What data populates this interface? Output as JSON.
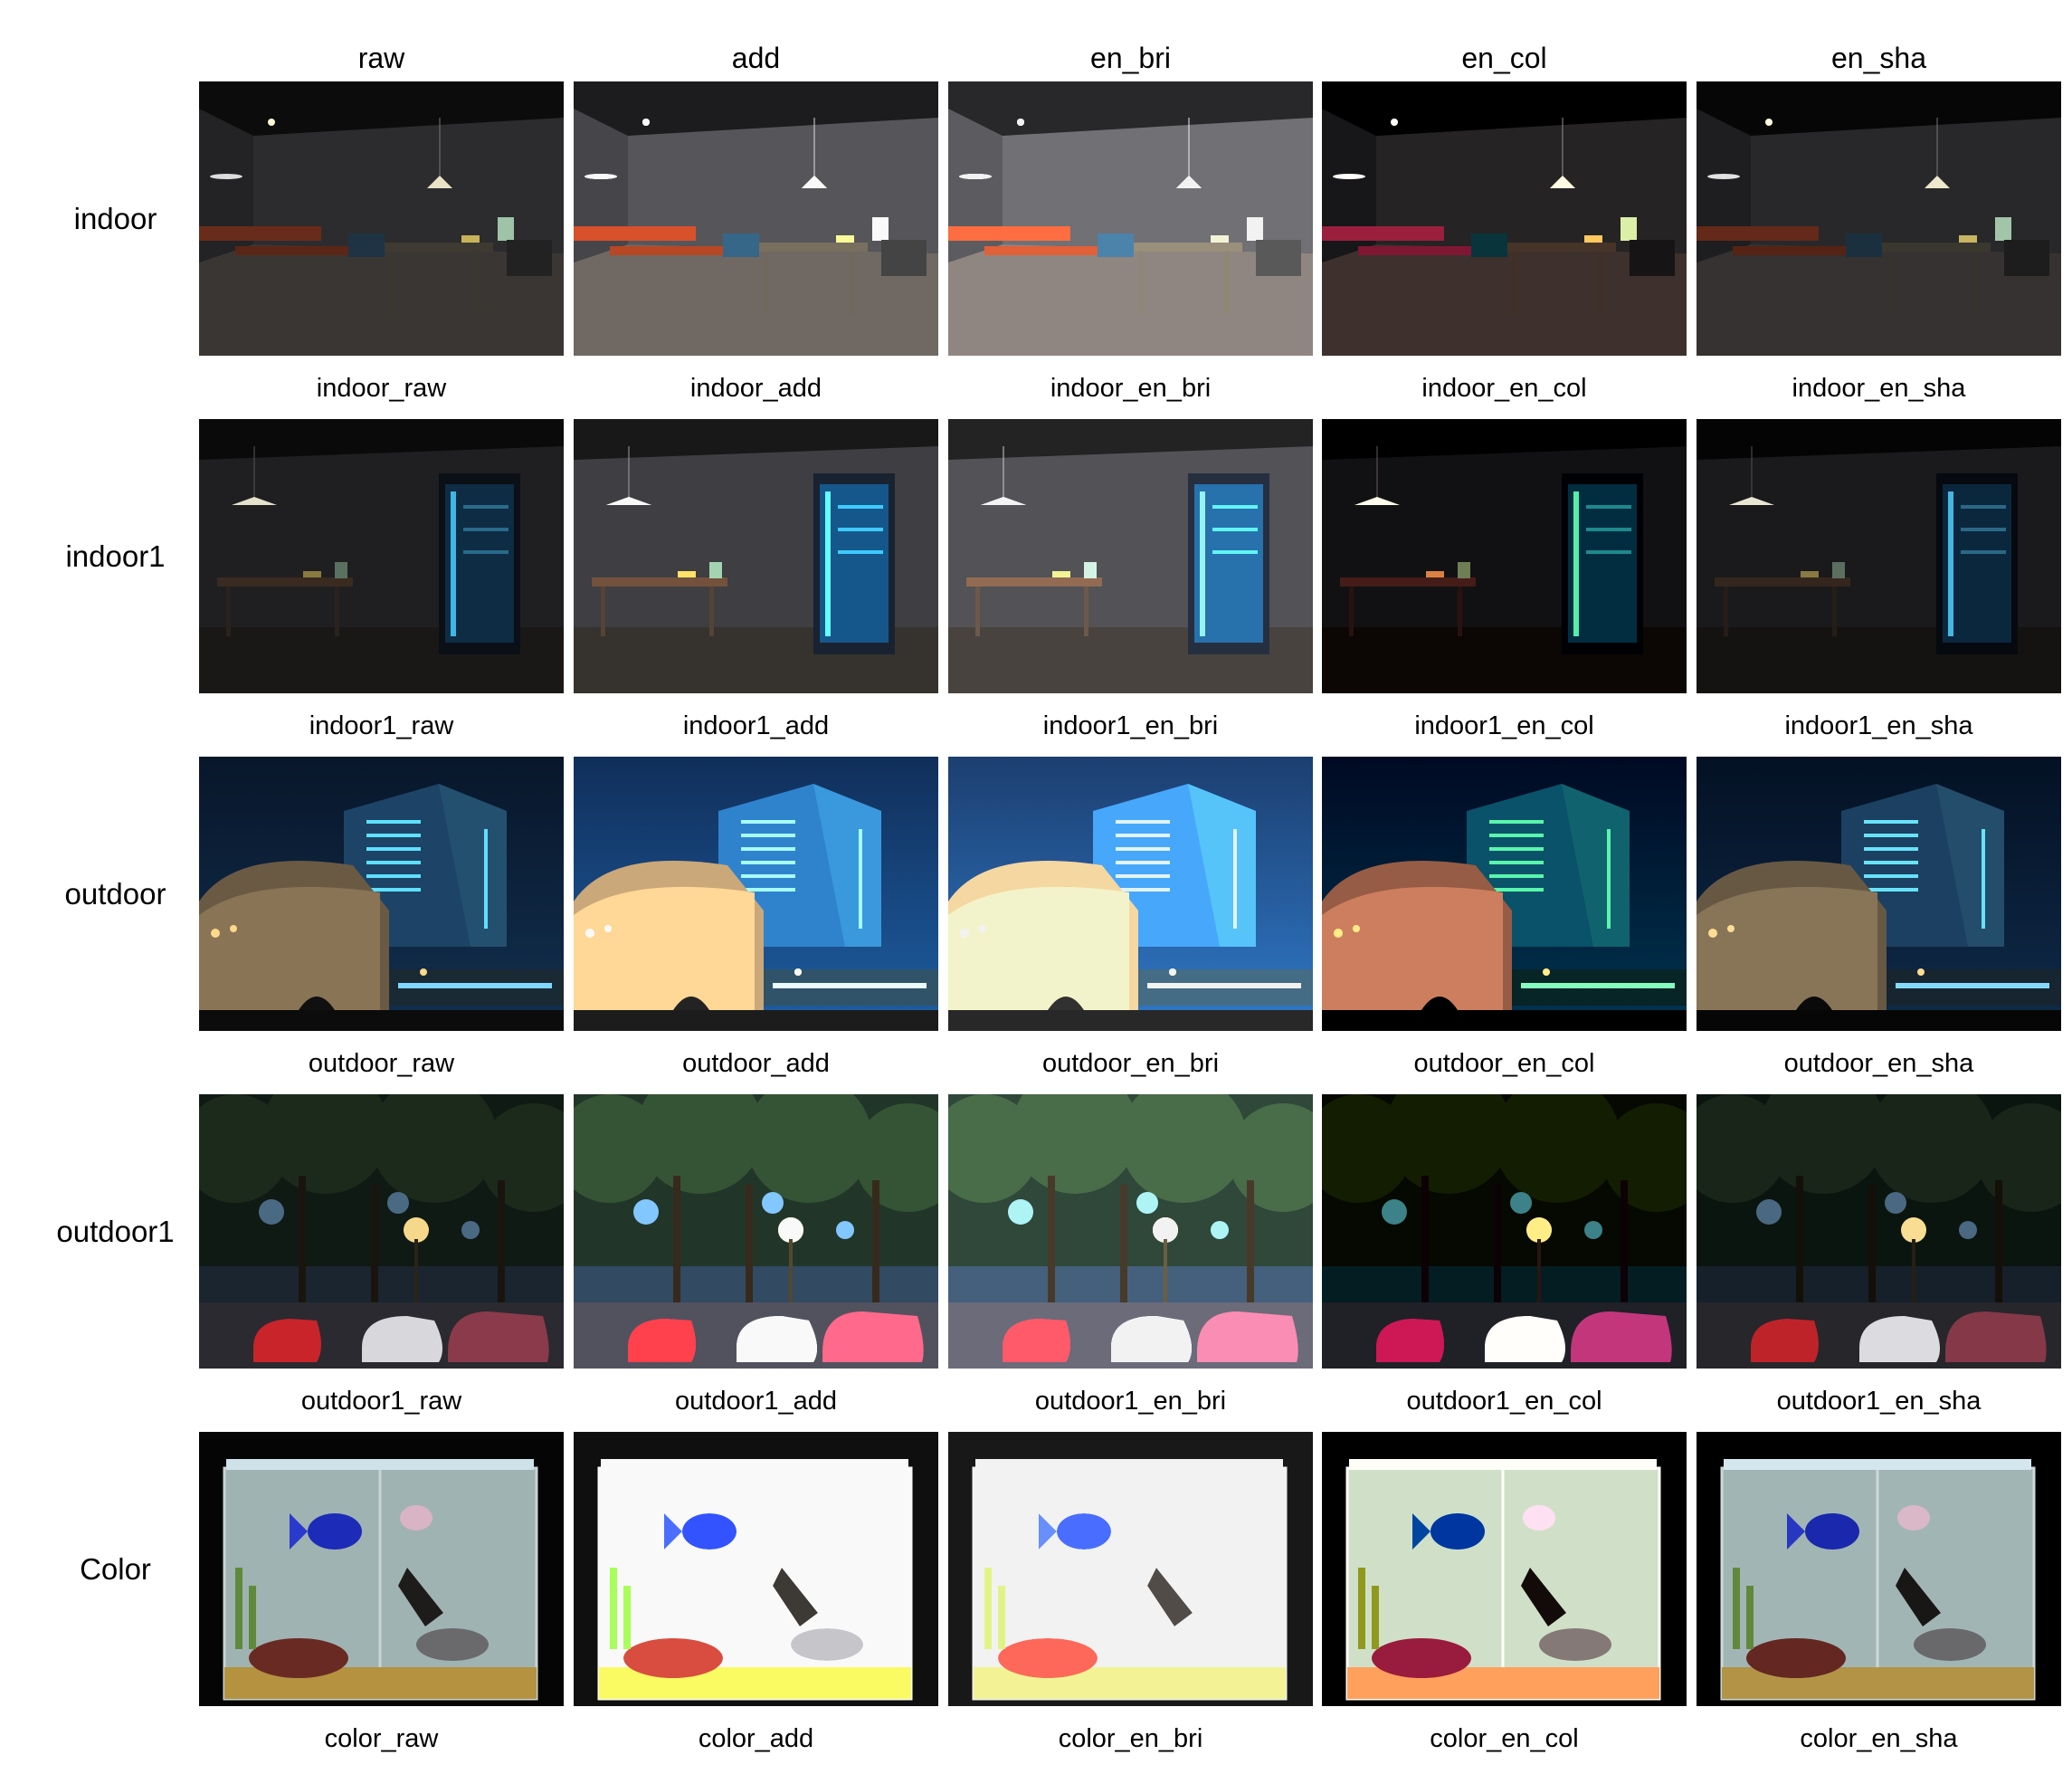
{
  "columns": [
    "raw",
    "add",
    "en_bri",
    "en_col",
    "en_sha"
  ],
  "rows": [
    {
      "label": "indoor",
      "scene": "indoor",
      "captions": [
        "indoor_raw",
        "indoor_add",
        "indoor_en_bri",
        "indoor_en_col",
        "indoor_en_sha"
      ]
    },
    {
      "label": "indoor1",
      "scene": "indoor1",
      "captions": [
        "indoor1_raw",
        "indoor1_add",
        "indoor1_en_bri",
        "indoor1_en_col",
        "indoor1_en_sha"
      ]
    },
    {
      "label": "outdoor",
      "scene": "outdoor",
      "captions": [
        "outdoor_raw",
        "outdoor_add",
        "outdoor_en_bri",
        "outdoor_en_col",
        "outdoor_en_sha"
      ]
    },
    {
      "label": "outdoor1",
      "scene": "outdoor1",
      "captions": [
        "outdoor1_raw",
        "outdoor1_add",
        "outdoor1_en_bri",
        "outdoor1_en_col",
        "outdoor1_en_sha"
      ]
    },
    {
      "label": "Color",
      "scene": "color",
      "captions": [
        "color_raw",
        "color_add",
        "color_en_bri",
        "color_en_col",
        "color_en_sha"
      ]
    }
  ],
  "variant_filters": {
    "raw": {
      "brightness": 1.0,
      "contrast": 1.0,
      "saturate": 1.0,
      "tint": "none"
    },
    "add": {
      "brightness": 1.9,
      "contrast": 0.95,
      "saturate": 1.2,
      "tint": "none"
    },
    "en_bri": {
      "brightness": 2.5,
      "contrast": 0.9,
      "saturate": 1.1,
      "tint": "none"
    },
    "en_col": {
      "brightness": 1.1,
      "contrast": 1.2,
      "saturate": 2.0,
      "tint": "red"
    },
    "en_sha": {
      "brightness": 1.0,
      "contrast": 1.05,
      "saturate": 0.9,
      "tint": "none"
    }
  },
  "colors": {
    "background": "#ffffff",
    "indoor_wall": "#2a2a2c",
    "indoor_floor": "#3a3634",
    "outdoor_sky": "#0a1830",
    "building_blue": "#1b6fbd",
    "lamp_warm": "#f4c16a",
    "car_red": "#c8242a",
    "tank_water": "#9fb3b3",
    "fish_blue": "#1c2bb8"
  }
}
